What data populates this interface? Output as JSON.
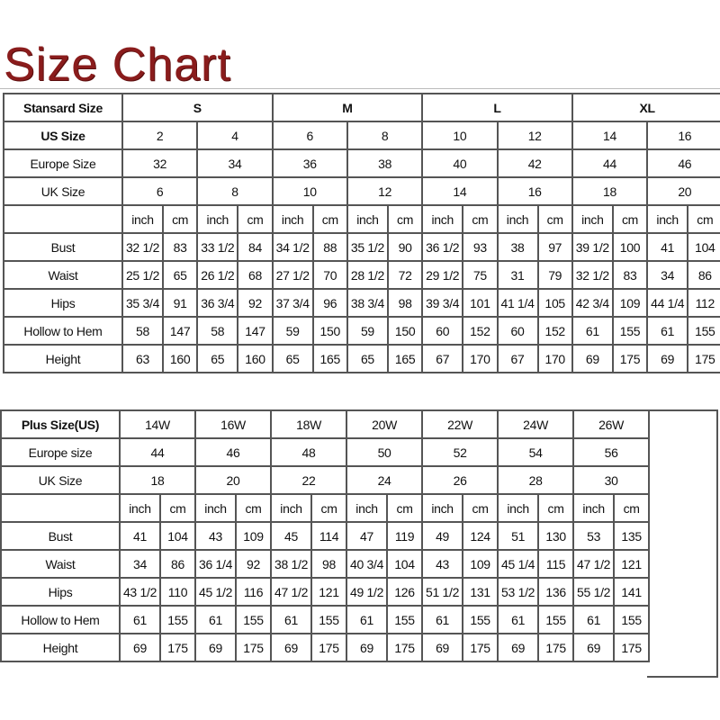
{
  "title": "Size Chart",
  "standard": {
    "header_label": "Stansard Size",
    "groups": [
      "S",
      "M",
      "L",
      "XL"
    ],
    "rows": [
      {
        "label": "US Size",
        "bold": true,
        "values": [
          "2",
          "4",
          "6",
          "8",
          "10",
          "12",
          "14",
          "16"
        ]
      },
      {
        "label": "Europe Size",
        "values": [
          "32",
          "34",
          "36",
          "38",
          "40",
          "42",
          "44",
          "46"
        ]
      },
      {
        "label": "UK Size",
        "values": [
          "6",
          "8",
          "10",
          "12",
          "14",
          "16",
          "18",
          "20"
        ]
      }
    ],
    "unit_labels": [
      "inch",
      "cm"
    ],
    "measurements": [
      {
        "label": "Bust",
        "values": [
          "32 1/2",
          "83",
          "33 1/2",
          "84",
          "34 1/2",
          "88",
          "35 1/2",
          "90",
          "36 1/2",
          "93",
          "38",
          "97",
          "39 1/2",
          "100",
          "41",
          "104"
        ]
      },
      {
        "label": "Waist",
        "values": [
          "25 1/2",
          "65",
          "26 1/2",
          "68",
          "27 1/2",
          "70",
          "28 1/2",
          "72",
          "29 1/2",
          "75",
          "31",
          "79",
          "32 1/2",
          "83",
          "34",
          "86"
        ]
      },
      {
        "label": "Hips",
        "values": [
          "35 3/4",
          "91",
          "36 3/4",
          "92",
          "37 3/4",
          "96",
          "38 3/4",
          "98",
          "39 3/4",
          "101",
          "41 1/4",
          "105",
          "42 3/4",
          "109",
          "44 1/4",
          "112"
        ]
      },
      {
        "label": "Hollow to Hem",
        "values": [
          "58",
          "147",
          "58",
          "147",
          "59",
          "150",
          "59",
          "150",
          "60",
          "152",
          "60",
          "152",
          "61",
          "155",
          "61",
          "155"
        ]
      },
      {
        "label": "Height",
        "values": [
          "63",
          "160",
          "65",
          "160",
          "65",
          "165",
          "65",
          "165",
          "67",
          "170",
          "67",
          "170",
          "69",
          "175",
          "69",
          "175"
        ]
      }
    ]
  },
  "plus": {
    "rows": [
      {
        "label": "Plus Size(US)",
        "bold": true,
        "values": [
          "14W",
          "16W",
          "18W",
          "20W",
          "22W",
          "24W",
          "26W"
        ]
      },
      {
        "label": "Europe size",
        "values": [
          "44",
          "46",
          "48",
          "50",
          "52",
          "54",
          "56"
        ]
      },
      {
        "label": "UK Size",
        "values": [
          "18",
          "20",
          "22",
          "24",
          "26",
          "28",
          "30"
        ]
      }
    ],
    "unit_labels": [
      "inch",
      "cm"
    ],
    "measurements": [
      {
        "label": "Bust",
        "values": [
          "41",
          "104",
          "43",
          "109",
          "45",
          "114",
          "47",
          "119",
          "49",
          "124",
          "51",
          "130",
          "53",
          "135"
        ]
      },
      {
        "label": "Waist",
        "values": [
          "34",
          "86",
          "36 1/4",
          "92",
          "38 1/2",
          "98",
          "40 3/4",
          "104",
          "43",
          "109",
          "45 1/4",
          "115",
          "47 1/2",
          "121"
        ]
      },
      {
        "label": "Hips",
        "values": [
          "43 1/2",
          "110",
          "45 1/2",
          "116",
          "47 1/2",
          "121",
          "49 1/2",
          "126",
          "51 1/2",
          "131",
          "53 1/2",
          "136",
          "55 1/2",
          "141"
        ]
      },
      {
        "label": "Hollow to Hem",
        "values": [
          "61",
          "155",
          "61",
          "155",
          "61",
          "155",
          "61",
          "155",
          "61",
          "155",
          "61",
          "155",
          "61",
          "155"
        ]
      },
      {
        "label": "Height",
        "values": [
          "69",
          "175",
          "69",
          "175",
          "69",
          "175",
          "69",
          "175",
          "69",
          "175",
          "69",
          "175",
          "69",
          "175"
        ]
      }
    ]
  },
  "colors": {
    "title": "#8a1c1c",
    "grid": "#555555"
  }
}
